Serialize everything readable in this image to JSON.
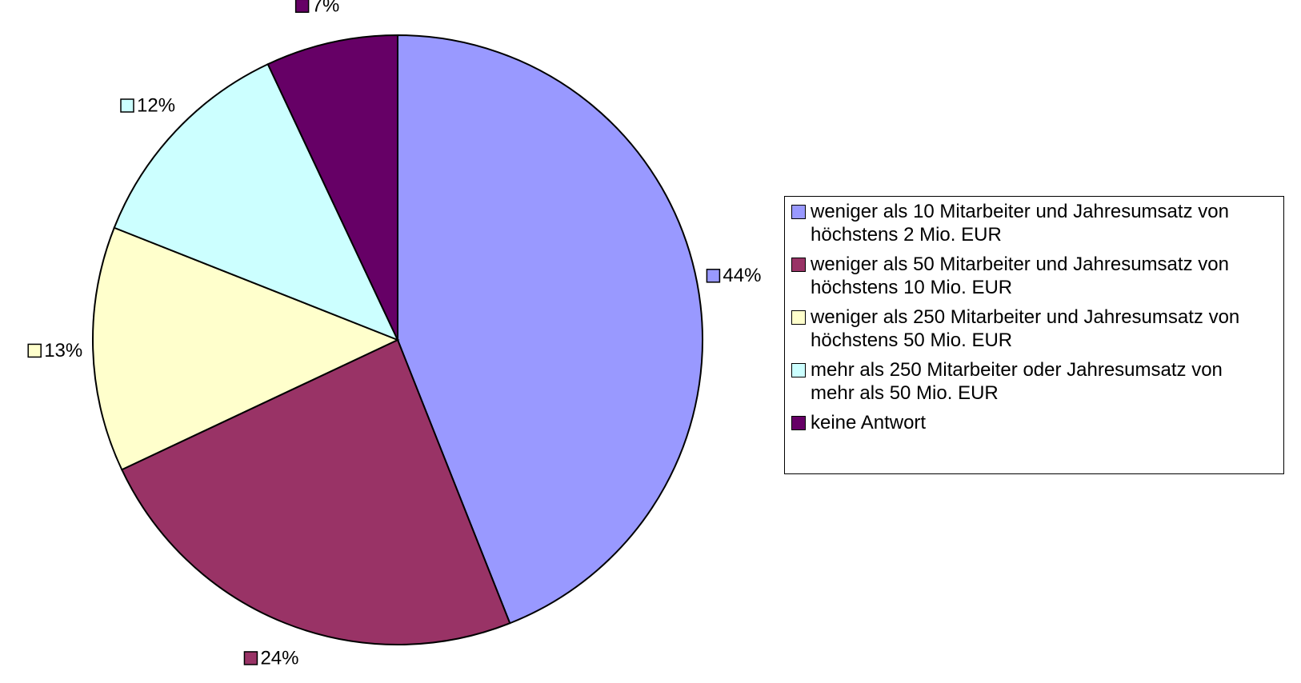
{
  "chart_data": {
    "type": "pie",
    "categories": [
      "weniger als 10 Mitarbeiter und Jahresumsatz von höchstens 2 Mio. EUR",
      "weniger als 50 Mitarbeiter und Jahresumsatz von höchstens 10 Mio. EUR",
      "weniger als 250 Mitarbeiter und Jahresumsatz von höchstens 50 Mio. EUR",
      "mehr als 250 Mitarbeiter oder Jahresumsatz von mehr als 50 Mio. EUR",
      "keine Antwort"
    ],
    "values": [
      44,
      24,
      13,
      12,
      7
    ],
    "value_labels": [
      "44%",
      "24%",
      "13%",
      "12%",
      "7%"
    ],
    "colors": [
      "#9999ff",
      "#993366",
      "#ffffcc",
      "#ccffff",
      "#660066"
    ],
    "legend": "right"
  }
}
